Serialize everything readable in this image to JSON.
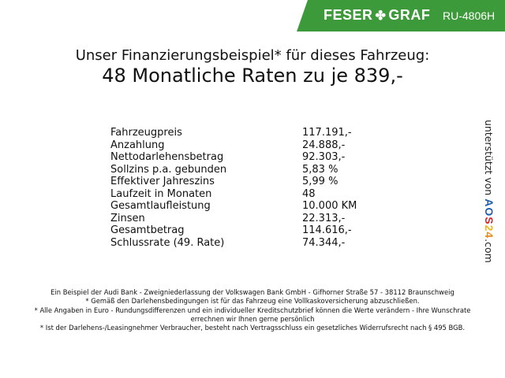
{
  "header": {
    "brand_left": "FESER",
    "brand_right": "GRAF",
    "brand_icon": "clover-icon",
    "vehicle_code": "RU-4806H",
    "brand_color": "#3d9a3a"
  },
  "title": {
    "line1": "Unser Finanzierungsbeispiel* für dieses Fahrzeug:",
    "line2": "48 Monatliche Raten zu je 839,-"
  },
  "rows": [
    {
      "label": "Fahrzeugpreis",
      "value": "117.191,-"
    },
    {
      "label": "Anzahlung",
      "value": "24.888,-"
    },
    {
      "label": "Nettodarlehensbetrag",
      "value": "92.303,-"
    },
    {
      "label": "Sollzins p.a. gebunden",
      "value": "5,83 %"
    },
    {
      "label": "Effektiver Jahreszins",
      "value": "5,99 %"
    },
    {
      "label": "Laufzeit in Monaten",
      "value": "48"
    },
    {
      "label": "Gesamtlaufleistung",
      "value": "10.000 KM"
    },
    {
      "label": "Zinsen",
      "value": "22.313,-"
    },
    {
      "label": "Gesamtbetrag",
      "value": "114.616,-"
    },
    {
      "label": "Schlussrate (49. Rate)",
      "value": "74.344,-"
    }
  ],
  "sidebar": {
    "text": "unterstützt von",
    "logo": "AOS24",
    "suffix": ".com"
  },
  "footer": [
    "Ein Beispiel der Audi Bank - Zweigniederlassung der Volkswagen Bank GmbH - Gifhorner Straße 57 - 38112 Braunschweig",
    "* Gemäß den Darlehensbedingungen ist für das Fahrzeug eine Vollkaskoversicherung abzuschließen.",
    "* Alle Angaben in Euro - Rundungsdifferenzen und ein individueller Kreditschutzbrief können die Werte verändern - Ihre Wunschrate errechnen wir Ihnen gerne persönlich",
    "* Ist der Darlehens-/Leasingnehmer Verbraucher, besteht nach Vertragsschluss ein gesetzliches Widerrufsrecht nach § 495 BGB."
  ]
}
